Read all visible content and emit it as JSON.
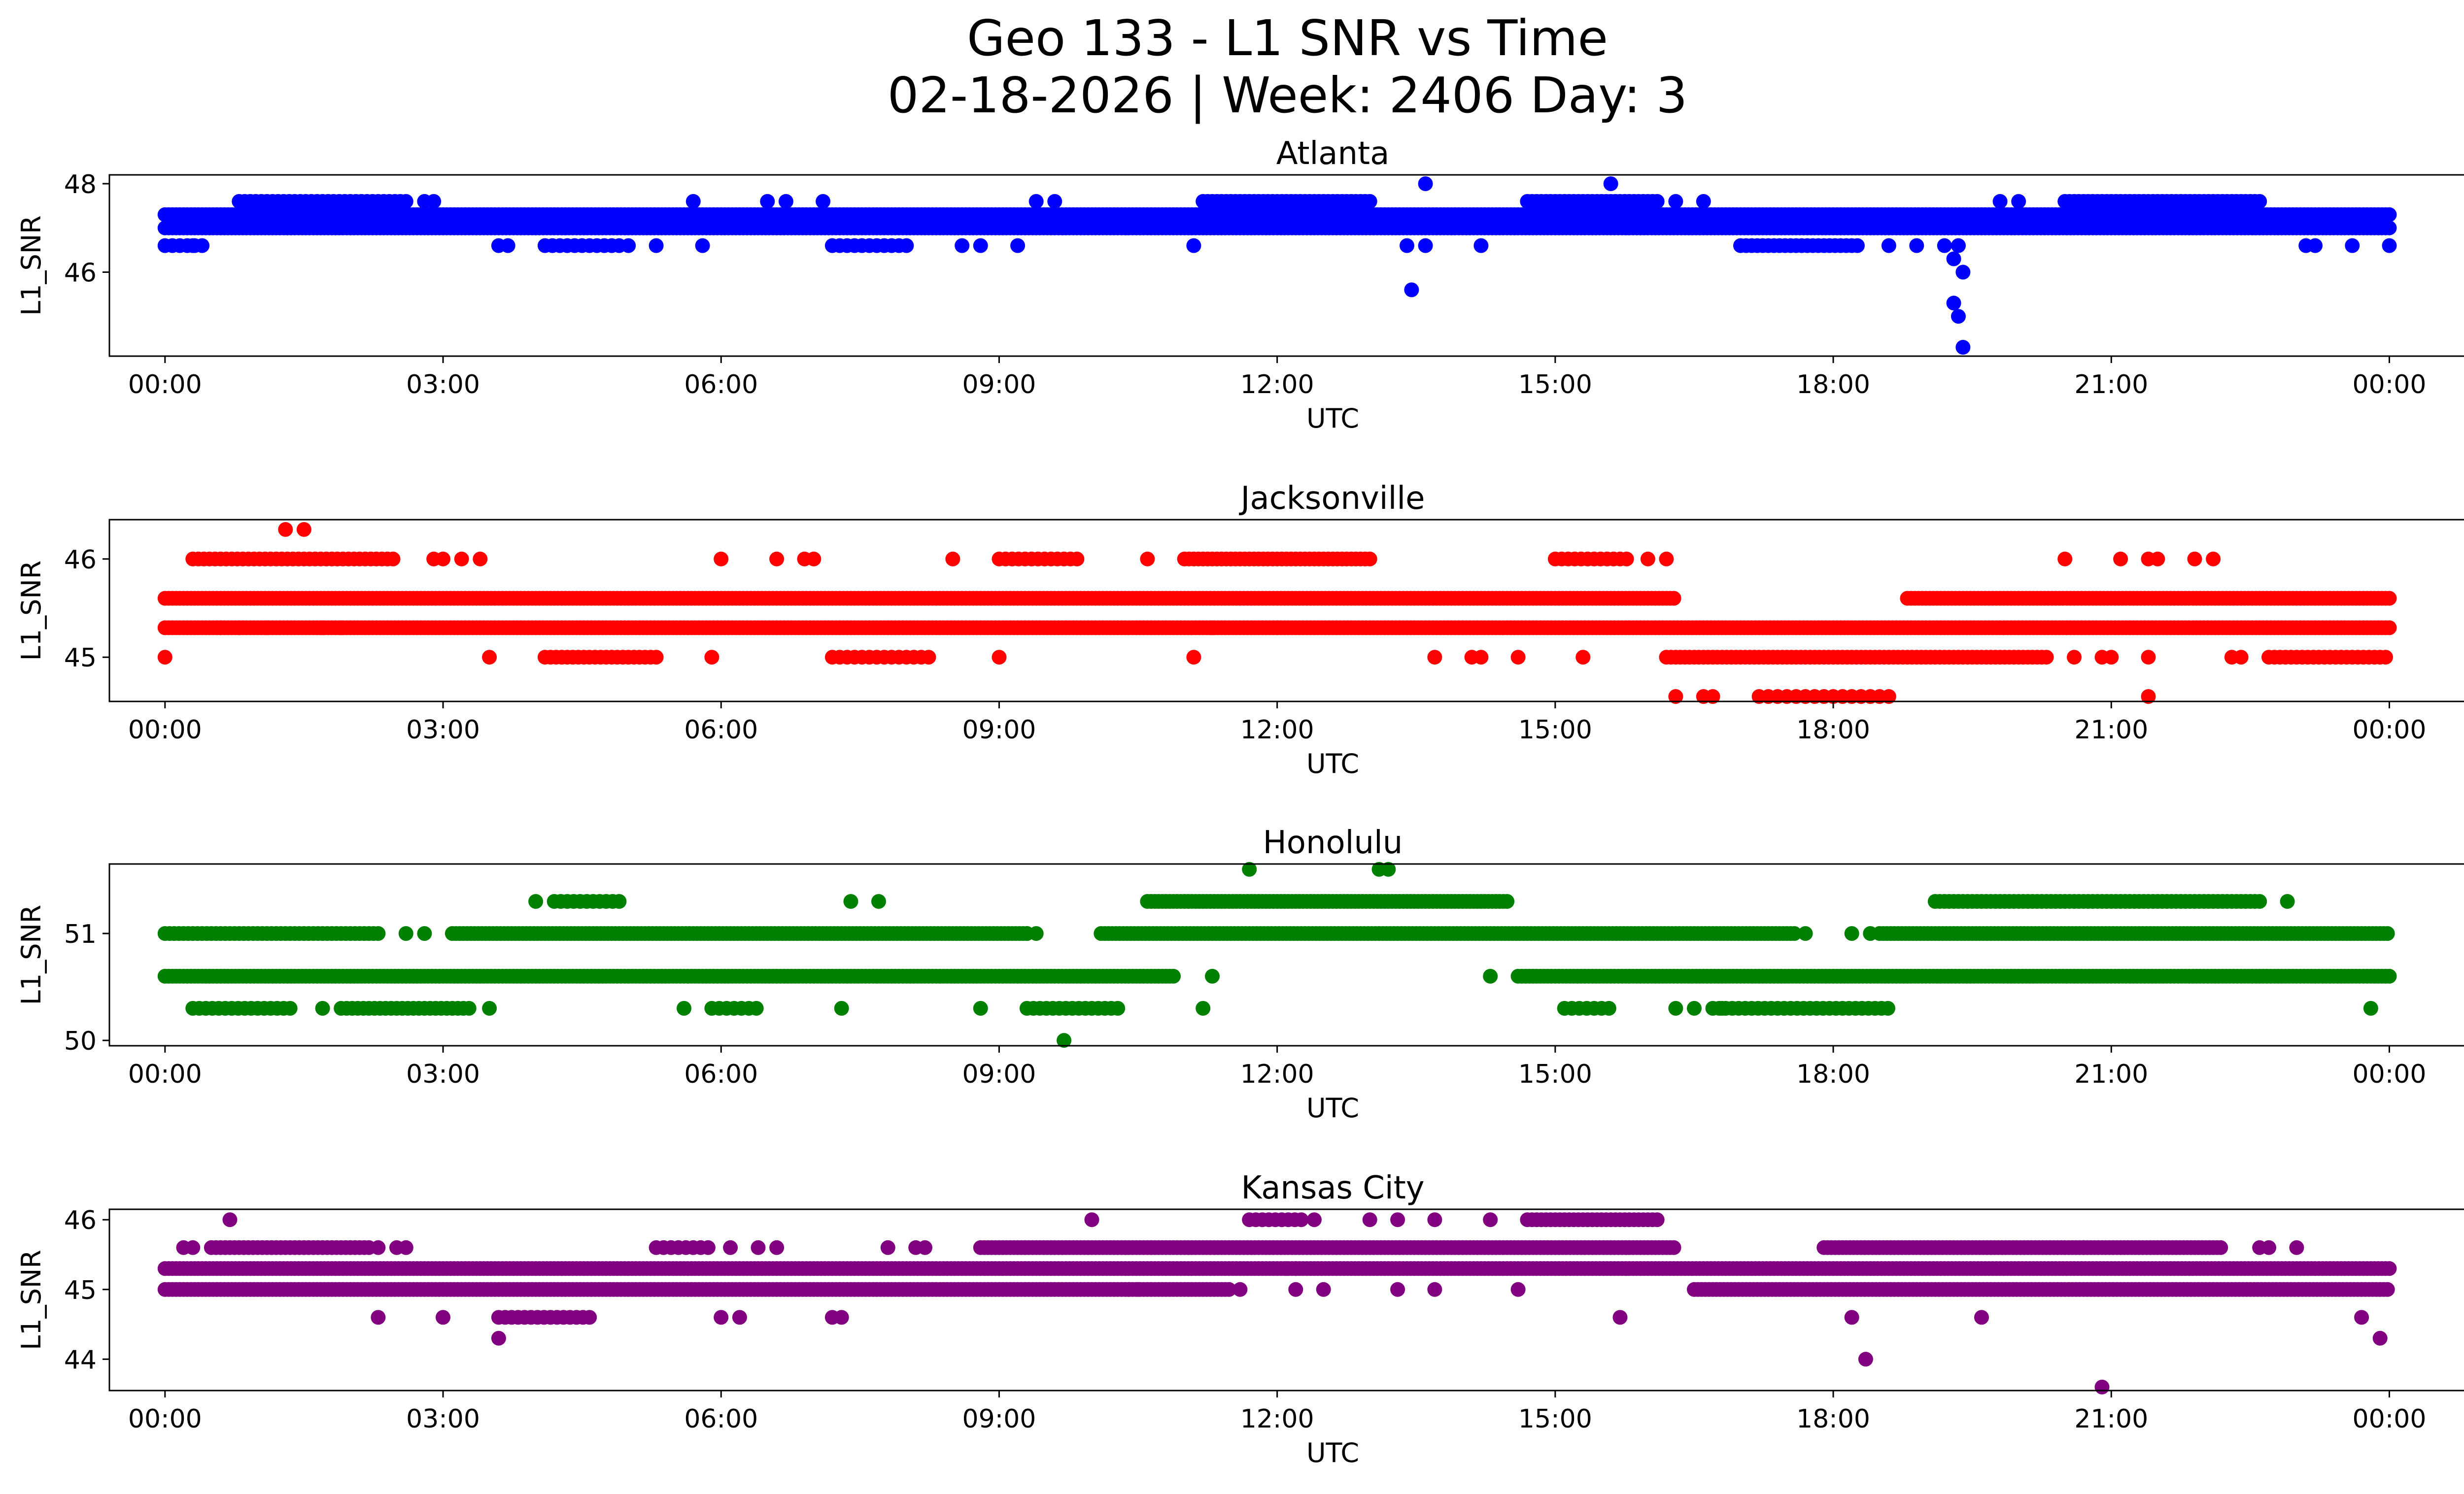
{
  "title": "Geo 133 - L1 SNR vs Time",
  "subtitle": "02-18-2026 | Week: 2406 Day: 3",
  "chart_data": [
    {
      "type": "scatter",
      "title": "Atlanta",
      "color": "#0000ff",
      "xlabel": "UTC",
      "ylabel": "L1_SNR",
      "x_unit": "hours UTC",
      "xlim": [
        -0.6,
        25.8
      ],
      "ylim": [
        44.1,
        48.2
      ],
      "yticks": [
        46,
        48
      ],
      "xticks": [
        0,
        3,
        6,
        9,
        12,
        15,
        18,
        21,
        24
      ],
      "xtick_labels": [
        "00:00",
        "03:00",
        "06:00",
        "09:00",
        "12:00",
        "15:00",
        "18:00",
        "21:00",
        "00:00"
      ],
      "bands": [
        {
          "y": 47.3,
          "from": 0.0,
          "to": 24.0,
          "step": 0.04
        },
        {
          "y": 47.0,
          "from": 0.0,
          "to": 24.0,
          "step": 0.04
        },
        {
          "y": 47.6,
          "from": 0.8,
          "to": 2.6,
          "step": 0.06
        },
        {
          "y": 47.6,
          "from": 11.2,
          "to": 13.0,
          "step": 0.05
        },
        {
          "y": 47.6,
          "from": 14.7,
          "to": 16.1,
          "step": 0.05
        },
        {
          "y": 47.6,
          "from": 20.5,
          "to": 22.6,
          "step": 0.05
        },
        {
          "y": 46.6,
          "from": 0.0,
          "to": 0.4,
          "step": 0.08
        },
        {
          "y": 46.6,
          "from": 4.1,
          "to": 4.9,
          "step": 0.08
        },
        {
          "y": 46.6,
          "from": 7.2,
          "to": 8.0,
          "step": 0.08
        },
        {
          "y": 46.6,
          "from": 17.0,
          "to": 18.3,
          "step": 0.06
        }
      ],
      "points": [
        [
          0.3,
          46.6
        ],
        [
          3.6,
          46.6
        ],
        [
          3.7,
          46.6
        ],
        [
          5.0,
          46.6
        ],
        [
          5.3,
          46.6
        ],
        [
          5.8,
          46.6
        ],
        [
          8.6,
          46.6
        ],
        [
          8.8,
          46.6
        ],
        [
          9.2,
          46.6
        ],
        [
          11.1,
          46.6
        ],
        [
          13.4,
          46.6
        ],
        [
          13.6,
          46.6
        ],
        [
          14.2,
          46.6
        ],
        [
          18.6,
          46.6
        ],
        [
          18.9,
          46.6
        ],
        [
          19.2,
          46.6
        ],
        [
          23.1,
          46.6
        ],
        [
          23.2,
          46.6
        ],
        [
          23.6,
          46.6
        ],
        [
          24.0,
          46.6
        ],
        [
          5.7,
          47.6
        ],
        [
          6.5,
          47.6
        ],
        [
          6.7,
          47.6
        ],
        [
          7.1,
          47.6
        ],
        [
          9.4,
          47.6
        ],
        [
          9.6,
          47.6
        ],
        [
          16.3,
          47.6
        ],
        [
          16.6,
          47.6
        ],
        [
          19.8,
          47.6
        ],
        [
          20.0,
          47.6
        ],
        [
          2.8,
          47.6
        ],
        [
          2.9,
          47.6
        ],
        [
          13.6,
          48.0
        ],
        [
          15.6,
          48.0
        ],
        [
          13.45,
          45.6
        ],
        [
          19.3,
          46.3
        ],
        [
          19.35,
          46.6
        ],
        [
          19.3,
          45.3
        ],
        [
          19.35,
          45.0
        ],
        [
          19.4,
          46.0
        ],
        [
          19.4,
          44.3
        ]
      ]
    },
    {
      "type": "scatter",
      "title": "Jacksonville",
      "color": "#ff0000",
      "xlabel": "UTC",
      "ylabel": "L1_SNR",
      "x_unit": "hours UTC",
      "xlim": [
        -0.6,
        25.8
      ],
      "ylim": [
        44.55,
        46.4
      ],
      "yticks": [
        45,
        46
      ],
      "xticks": [
        0,
        3,
        6,
        9,
        12,
        15,
        18,
        21,
        24
      ],
      "xtick_labels": [
        "00:00",
        "03:00",
        "06:00",
        "09:00",
        "12:00",
        "15:00",
        "18:00",
        "21:00",
        "00:00"
      ],
      "bands": [
        {
          "y": 45.6,
          "from": 0.0,
          "to": 16.3,
          "step": 0.04
        },
        {
          "y": 45.6,
          "from": 18.8,
          "to": 24.0,
          "step": 0.04
        },
        {
          "y": 45.3,
          "from": 0.0,
          "to": 24.0,
          "step": 0.04
        },
        {
          "y": 45.0,
          "from": 16.2,
          "to": 20.3,
          "step": 0.05
        },
        {
          "y": 45.0,
          "from": 4.1,
          "to": 5.3,
          "step": 0.06
        },
        {
          "y": 45.0,
          "from": 7.2,
          "to": 8.3,
          "step": 0.08
        },
        {
          "y": 45.0,
          "from": 22.7,
          "to": 24.0,
          "step": 0.06
        },
        {
          "y": 46.0,
          "from": 0.3,
          "to": 2.5,
          "step": 0.06
        },
        {
          "y": 46.0,
          "from": 9.0,
          "to": 9.9,
          "step": 0.07
        },
        {
          "y": 46.0,
          "from": 11.0,
          "to": 13.0,
          "step": 0.05
        },
        {
          "y": 46.0,
          "from": 15.0,
          "to": 15.8,
          "step": 0.07
        },
        {
          "y": 44.6,
          "from": 17.2,
          "to": 18.6,
          "step": 0.1
        }
      ],
      "points": [
        [
          0.0,
          45.0
        ],
        [
          3.5,
          45.0
        ],
        [
          5.9,
          45.0
        ],
        [
          9.0,
          45.0
        ],
        [
          11.1,
          45.0
        ],
        [
          13.7,
          45.0
        ],
        [
          14.1,
          45.0
        ],
        [
          14.2,
          45.0
        ],
        [
          14.6,
          45.0
        ],
        [
          15.3,
          45.0
        ],
        [
          20.6,
          45.0
        ],
        [
          20.9,
          45.0
        ],
        [
          21.0,
          45.0
        ],
        [
          21.4,
          45.0
        ],
        [
          22.3,
          45.0
        ],
        [
          22.4,
          45.0
        ],
        [
          1.3,
          46.3
        ],
        [
          1.5,
          46.3
        ],
        [
          2.9,
          46.0
        ],
        [
          3.0,
          46.0
        ],
        [
          3.2,
          46.0
        ],
        [
          3.4,
          46.0
        ],
        [
          6.0,
          46.0
        ],
        [
          6.6,
          46.0
        ],
        [
          6.9,
          46.0
        ],
        [
          7.0,
          46.0
        ],
        [
          8.5,
          46.0
        ],
        [
          10.6,
          46.0
        ],
        [
          16.0,
          46.0
        ],
        [
          16.2,
          46.0
        ],
        [
          20.5,
          46.0
        ],
        [
          21.1,
          46.0
        ],
        [
          21.4,
          46.0
        ],
        [
          21.5,
          46.0
        ],
        [
          21.9,
          46.0
        ],
        [
          22.1,
          46.0
        ],
        [
          16.3,
          44.6
        ],
        [
          16.6,
          44.6
        ],
        [
          16.7,
          44.6
        ],
        [
          21.4,
          44.6
        ],
        [
          0.6,
          45.3
        ],
        [
          0.8,
          45.3
        ],
        [
          1.1,
          45.3
        ],
        [
          1.7,
          45.3
        ],
        [
          1.9,
          45.3
        ],
        [
          11.3,
          45.3
        ],
        [
          12.0,
          45.3
        ]
      ]
    },
    {
      "type": "scatter",
      "title": "Honolulu",
      "color": "#008000",
      "xlabel": "UTC",
      "ylabel": "L1_SNR",
      "x_unit": "hours UTC",
      "xlim": [
        -0.6,
        25.8
      ],
      "ylim": [
        49.95,
        51.65
      ],
      "yticks": [
        50,
        51
      ],
      "xticks": [
        0,
        3,
        6,
        9,
        12,
        15,
        18,
        21,
        24
      ],
      "xtick_labels": [
        "00:00",
        "03:00",
        "06:00",
        "09:00",
        "12:00",
        "15:00",
        "18:00",
        "21:00",
        "00:00"
      ],
      "bands": [
        {
          "y": 50.6,
          "from": 0.0,
          "to": 10.9,
          "step": 0.04
        },
        {
          "y": 50.6,
          "from": 14.6,
          "to": 24.0,
          "step": 0.04
        },
        {
          "y": 51.0,
          "from": 0.0,
          "to": 2.3,
          "step": 0.05
        },
        {
          "y": 51.0,
          "from": 3.1,
          "to": 9.3,
          "step": 0.04
        },
        {
          "y": 51.0,
          "from": 10.1,
          "to": 17.6,
          "step": 0.04
        },
        {
          "y": 51.0,
          "from": 18.5,
          "to": 24.0,
          "step": 0.04
        },
        {
          "y": 51.3,
          "from": 10.6,
          "to": 14.5,
          "step": 0.04
        },
        {
          "y": 51.3,
          "from": 19.1,
          "to": 22.6,
          "step": 0.05
        },
        {
          "y": 51.3,
          "from": 4.2,
          "to": 4.9,
          "step": 0.07
        },
        {
          "y": 50.3,
          "from": 0.3,
          "to": 1.4,
          "step": 0.07
        },
        {
          "y": 50.3,
          "from": 1.9,
          "to": 3.3,
          "step": 0.06
        },
        {
          "y": 50.3,
          "from": 5.9,
          "to": 6.4,
          "step": 0.08
        },
        {
          "y": 50.3,
          "from": 9.3,
          "to": 10.3,
          "step": 0.07
        },
        {
          "y": 50.3,
          "from": 15.1,
          "to": 15.6,
          "step": 0.08
        },
        {
          "y": 50.3,
          "from": 16.7,
          "to": 18.6,
          "step": 0.07
        }
      ],
      "points": [
        [
          4.0,
          51.3
        ],
        [
          7.4,
          51.3
        ],
        [
          7.7,
          51.3
        ],
        [
          22.9,
          51.3
        ],
        [
          11.7,
          51.6
        ],
        [
          13.1,
          51.6
        ],
        [
          13.2,
          51.6
        ],
        [
          9.7,
          50.0
        ],
        [
          23.8,
          50.3
        ],
        [
          11.2,
          50.3
        ],
        [
          7.3,
          50.3
        ],
        [
          8.8,
          50.3
        ],
        [
          5.6,
          50.3
        ],
        [
          1.7,
          50.3
        ],
        [
          3.5,
          50.3
        ],
        [
          16.3,
          50.3
        ],
        [
          16.5,
          50.3
        ],
        [
          16.8,
          50.3
        ],
        [
          11.3,
          50.6
        ],
        [
          14.3,
          50.6
        ],
        [
          2.6,
          51.0
        ],
        [
          2.8,
          51.0
        ],
        [
          9.3,
          51.0
        ],
        [
          9.4,
          51.0
        ],
        [
          17.7,
          51.0
        ],
        [
          18.2,
          51.0
        ],
        [
          18.4,
          51.0
        ]
      ]
    },
    {
      "type": "scatter",
      "title": "Kansas City",
      "color": "#800080",
      "xlabel": "UTC",
      "ylabel": "L1_SNR",
      "x_unit": "hours UTC",
      "xlim": [
        -0.6,
        25.8
      ],
      "ylim": [
        43.55,
        46.15
      ],
      "yticks": [
        44,
        45,
        46
      ],
      "xticks": [
        0,
        3,
        6,
        9,
        12,
        15,
        18,
        21,
        24
      ],
      "xtick_labels": [
        "00:00",
        "03:00",
        "06:00",
        "09:00",
        "12:00",
        "15:00",
        "18:00",
        "21:00",
        "00:00"
      ],
      "bands": [
        {
          "y": 45.3,
          "from": 0.0,
          "to": 24.0,
          "step": 0.04
        },
        {
          "y": 45.0,
          "from": 0.0,
          "to": 11.5,
          "step": 0.04
        },
        {
          "y": 45.0,
          "from": 16.5,
          "to": 24.0,
          "step": 0.04
        },
        {
          "y": 45.6,
          "from": 0.5,
          "to": 2.2,
          "step": 0.05
        },
        {
          "y": 45.6,
          "from": 8.8,
          "to": 16.3,
          "step": 0.04
        },
        {
          "y": 45.6,
          "from": 17.9,
          "to": 22.2,
          "step": 0.04
        },
        {
          "y": 45.6,
          "from": 5.3,
          "to": 5.9,
          "step": 0.08
        },
        {
          "y": 46.0,
          "from": 11.7,
          "to": 12.3,
          "step": 0.07
        },
        {
          "y": 46.0,
          "from": 14.7,
          "to": 16.1,
          "step": 0.05
        },
        {
          "y": 44.6,
          "from": 3.6,
          "to": 4.6,
          "step": 0.07
        }
      ],
      "points": [
        [
          0.7,
          46.0
        ],
        [
          10.0,
          46.0
        ],
        [
          12.4,
          46.0
        ],
        [
          13.0,
          46.0
        ],
        [
          13.3,
          46.0
        ],
        [
          13.7,
          46.0
        ],
        [
          14.3,
          46.0
        ],
        [
          0.2,
          45.6
        ],
        [
          0.3,
          45.6
        ],
        [
          2.3,
          45.6
        ],
        [
          2.5,
          45.6
        ],
        [
          2.6,
          45.6
        ],
        [
          6.1,
          45.6
        ],
        [
          6.4,
          45.6
        ],
        [
          6.6,
          45.6
        ],
        [
          7.8,
          45.6
        ],
        [
          8.1,
          45.6
        ],
        [
          8.2,
          45.6
        ],
        [
          22.6,
          45.6
        ],
        [
          22.7,
          45.6
        ],
        [
          23.0,
          45.6
        ],
        [
          20.7,
          45.6
        ],
        [
          2.3,
          44.6
        ],
        [
          3.0,
          44.6
        ],
        [
          6.0,
          44.6
        ],
        [
          6.2,
          44.6
        ],
        [
          7.2,
          44.6
        ],
        [
          7.3,
          44.6
        ],
        [
          15.7,
          44.6
        ],
        [
          18.2,
          44.6
        ],
        [
          19.6,
          44.6
        ],
        [
          23.7,
          44.6
        ],
        [
          3.6,
          44.3
        ],
        [
          23.9,
          44.3
        ],
        [
          18.35,
          44.0
        ],
        [
          20.9,
          43.6
        ],
        [
          11.6,
          45.0
        ],
        [
          12.2,
          45.0
        ],
        [
          12.5,
          45.0
        ],
        [
          13.3,
          45.0
        ],
        [
          13.7,
          45.0
        ],
        [
          14.6,
          45.0
        ],
        [
          10.4,
          45.0
        ],
        [
          10.5,
          45.0
        ],
        [
          12.1,
          45.3
        ],
        [
          12.2,
          45.3
        ]
      ]
    }
  ]
}
